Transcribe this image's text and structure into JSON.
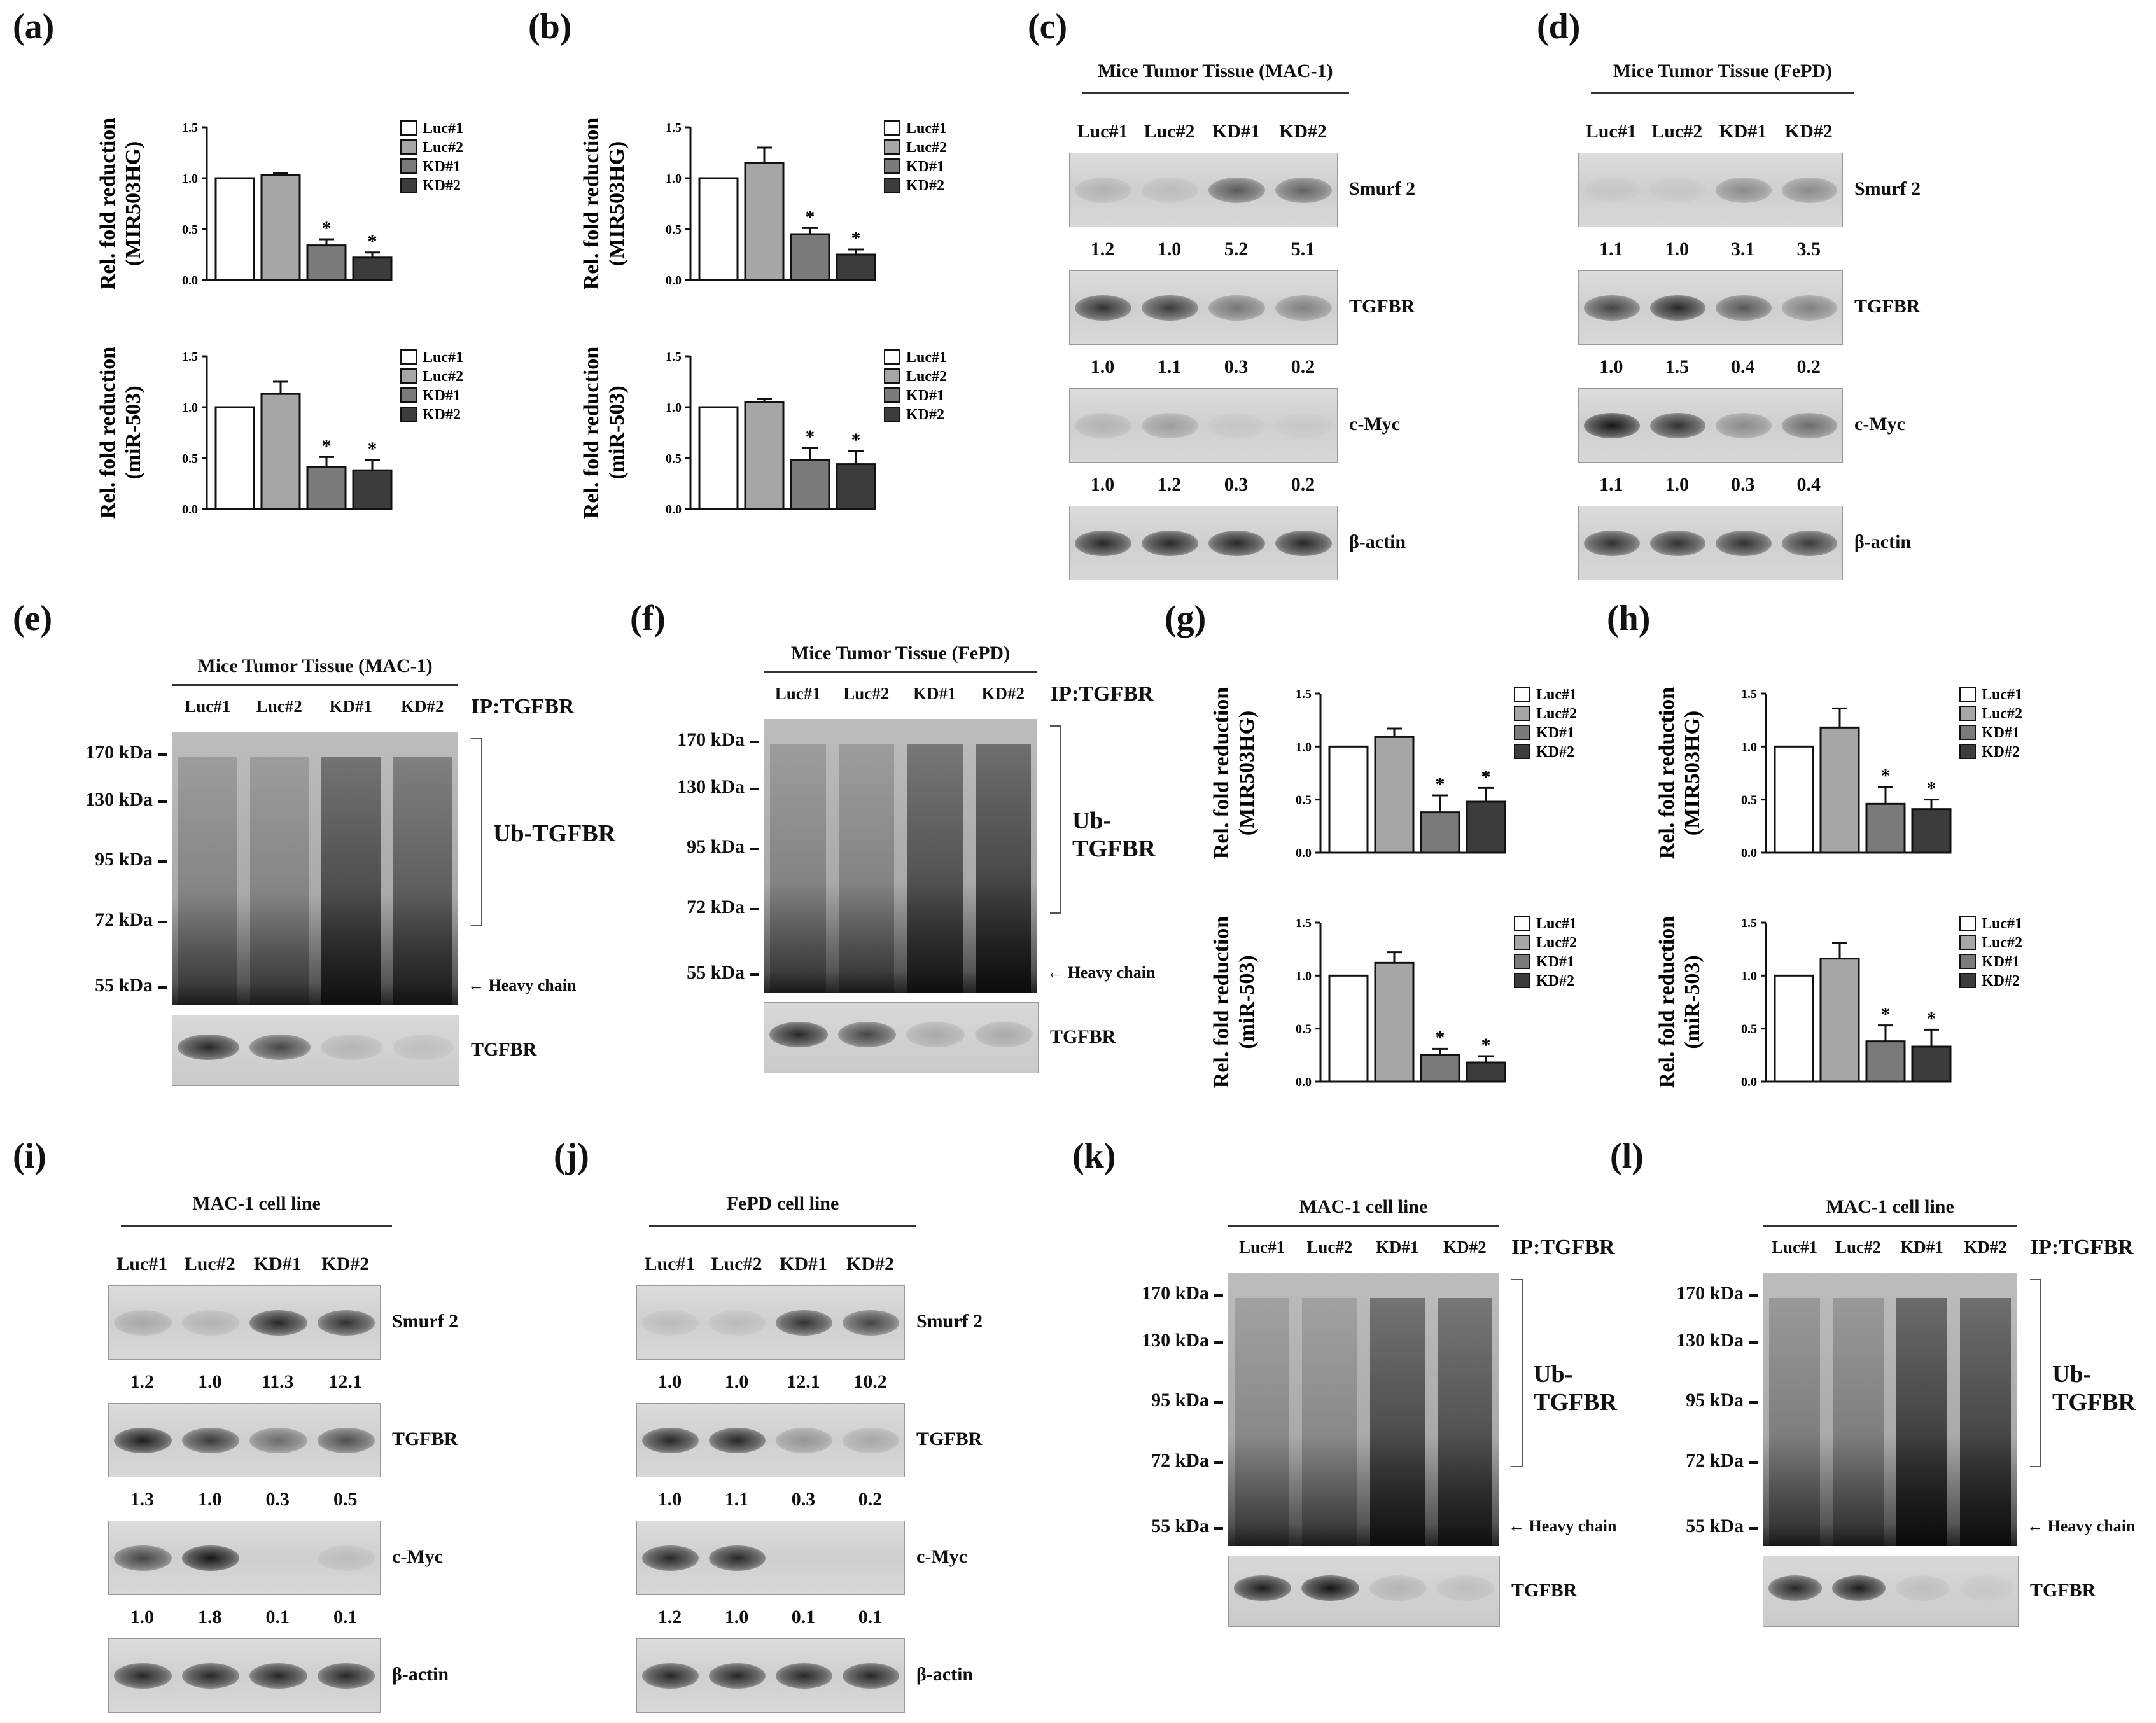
{
  "panel_labels": [
    "(a)",
    "(b)",
    "(c)",
    "(d)",
    "(e)",
    "(f)",
    "(g)",
    "(h)",
    "(i)",
    "(j)",
    "(k)",
    "(l)"
  ],
  "legend": [
    "Luc#1",
    "Luc#2",
    "KD#1",
    "KD#2"
  ],
  "bar_colors": [
    "#ffffff",
    "#a6a6a6",
    "#7a7a7a",
    "#3c3c3c"
  ],
  "chart_data": [
    {
      "panel": "(a)",
      "type": "bar",
      "ylabel": "Rel. fold reduction\n(MIR503HG)",
      "ylim": [
        0,
        1.5
      ],
      "yticks": [
        "0.0",
        "0.5",
        "1.0",
        "1.5"
      ],
      "categories": [
        "Luc#1",
        "Luc#2",
        "KD#1",
        "KD#2"
      ],
      "values": [
        1.0,
        1.03,
        0.34,
        0.22
      ],
      "errors": [
        0,
        0.02,
        0.06,
        0.05
      ],
      "significant": [
        false,
        false,
        true,
        true
      ],
      "star": "*"
    },
    {
      "panel": "(a)",
      "type": "bar",
      "ylabel": "Rel. fold reduction\n(miR-503)",
      "ylim": [
        0,
        1.5
      ],
      "yticks": [
        "0.0",
        "0.5",
        "1.0",
        "1.5"
      ],
      "categories": [
        "Luc#1",
        "Luc#2",
        "KD#1",
        "KD#2"
      ],
      "values": [
        1.0,
        1.13,
        0.41,
        0.38
      ],
      "errors": [
        0,
        0.12,
        0.1,
        0.1
      ],
      "significant": [
        false,
        false,
        true,
        true
      ],
      "star": "*"
    },
    {
      "panel": "(b)",
      "type": "bar",
      "ylabel": "Rel. fold reduction\n(MIR503HG)",
      "ylim": [
        0,
        1.5
      ],
      "yticks": [
        "0.0",
        "0.5",
        "1.0",
        "1.5"
      ],
      "categories": [
        "Luc#1",
        "Luc#2",
        "KD#1",
        "KD#2"
      ],
      "values": [
        1.0,
        1.15,
        0.45,
        0.25
      ],
      "errors": [
        0,
        0.15,
        0.06,
        0.05
      ],
      "significant": [
        false,
        false,
        true,
        true
      ],
      "star": "*"
    },
    {
      "panel": "(b)",
      "type": "bar",
      "ylabel": "Rel. fold reduction\n(miR-503)",
      "ylim": [
        0,
        1.5
      ],
      "yticks": [
        "0.0",
        "0.5",
        "1.0",
        "1.5"
      ],
      "categories": [
        "Luc#1",
        "Luc#2",
        "KD#1",
        "KD#2"
      ],
      "values": [
        1.0,
        1.05,
        0.48,
        0.44
      ],
      "errors": [
        0,
        0.03,
        0.12,
        0.13
      ],
      "significant": [
        false,
        false,
        true,
        true
      ],
      "star": "*"
    },
    {
      "panel": "(g)",
      "type": "bar",
      "ylabel": "Rel. fold reduction\n(MIR503HG)",
      "ylim": [
        0,
        1.5
      ],
      "yticks": [
        "0.0",
        "0.5",
        "1.0",
        "1.5"
      ],
      "categories": [
        "Luc#1",
        "Luc#2",
        "KD#1",
        "KD#2"
      ],
      "values": [
        1.0,
        1.09,
        0.38,
        0.48
      ],
      "errors": [
        0,
        0.08,
        0.16,
        0.13
      ],
      "significant": [
        false,
        false,
        true,
        true
      ],
      "star": "*"
    },
    {
      "panel": "(g)",
      "type": "bar",
      "ylabel": "Rel. fold reduction\n(miR-503)",
      "ylim": [
        0,
        1.5
      ],
      "yticks": [
        "0.0",
        "0.5",
        "1.0",
        "1.5"
      ],
      "categories": [
        "Luc#1",
        "Luc#2",
        "KD#1",
        "KD#2"
      ],
      "values": [
        1.0,
        1.12,
        0.25,
        0.18
      ],
      "errors": [
        0,
        0.1,
        0.06,
        0.06
      ],
      "significant": [
        false,
        false,
        true,
        true
      ],
      "star": "*"
    },
    {
      "panel": "(h)",
      "type": "bar",
      "ylabel": "Rel. fold reduction\n(MIR503HG)",
      "ylim": [
        0,
        1.5
      ],
      "yticks": [
        "0.0",
        "0.5",
        "1.0",
        "1.5"
      ],
      "categories": [
        "Luc#1",
        "Luc#2",
        "KD#1",
        "KD#2"
      ],
      "values": [
        1.0,
        1.18,
        0.46,
        0.41
      ],
      "errors": [
        0,
        0.18,
        0.16,
        0.09
      ],
      "significant": [
        false,
        false,
        true,
        true
      ],
      "star": "*"
    },
    {
      "panel": "(h)",
      "type": "bar",
      "ylabel": "Rel. fold reduction\n(miR-503)",
      "ylim": [
        0,
        1.5
      ],
      "yticks": [
        "0.0",
        "0.5",
        "1.0",
        "1.5"
      ],
      "categories": [
        "Luc#1",
        "Luc#2",
        "KD#1",
        "KD#2"
      ],
      "values": [
        1.0,
        1.16,
        0.38,
        0.33
      ],
      "errors": [
        0,
        0.15,
        0.15,
        0.16
      ],
      "significant": [
        false,
        false,
        true,
        true
      ],
      "star": "*"
    }
  ],
  "westerns": {
    "c": {
      "title": "Mice Tumor Tissue (MAC-1)",
      "lanes": [
        "Luc#1",
        "Luc#2",
        "KD#1",
        "KD#2"
      ],
      "proteins": [
        "Smurf 2",
        "TGFBR",
        "c-Myc",
        "β-actin"
      ],
      "quant": [
        [
          "1.2",
          "1.0",
          "5.2",
          "5.1"
        ],
        [
          "1.0",
          "1.1",
          "0.3",
          "0.2"
        ],
        [
          "1.0",
          "1.2",
          "0.3",
          "0.2"
        ]
      ],
      "intensity": [
        [
          0.15,
          0.1,
          0.6,
          0.55
        ],
        [
          0.8,
          0.75,
          0.45,
          0.4
        ],
        [
          0.15,
          0.25,
          0.05,
          0.04
        ],
        [
          0.85,
          0.85,
          0.85,
          0.85
        ]
      ]
    },
    "d": {
      "title": "Mice Tumor Tissue (FePD)",
      "lanes": [
        "Luc#1",
        "Luc#2",
        "KD#1",
        "KD#2"
      ],
      "proteins": [
        "Smurf 2",
        "TGFBR",
        "c-Myc",
        "β-actin"
      ],
      "quant": [
        [
          "1.1",
          "1.0",
          "3.1",
          "3.5"
        ],
        [
          "1.0",
          "1.5",
          "0.4",
          "0.2"
        ],
        [
          "1.1",
          "1.0",
          "0.3",
          "0.4"
        ]
      ],
      "intensity": [
        [
          0.05,
          0.05,
          0.35,
          0.35
        ],
        [
          0.7,
          0.85,
          0.6,
          0.4
        ],
        [
          0.95,
          0.8,
          0.35,
          0.5
        ],
        [
          0.8,
          0.8,
          0.8,
          0.75
        ]
      ]
    },
    "i": {
      "title": "MAC-1 cell line",
      "lanes": [
        "Luc#1",
        "Luc#2",
        "KD#1",
        "KD#2"
      ],
      "proteins": [
        "Smurf 2",
        "TGFBR",
        "c-Myc",
        "β-actin"
      ],
      "quant": [
        [
          "1.2",
          "1.0",
          "11.3",
          "12.1"
        ],
        [
          "1.3",
          "1.0",
          "0.3",
          "0.5"
        ],
        [
          "1.0",
          "1.8",
          "0.1",
          "0.1"
        ]
      ],
      "intensity": [
        [
          0.2,
          0.15,
          0.85,
          0.8
        ],
        [
          0.9,
          0.75,
          0.5,
          0.65
        ],
        [
          0.7,
          0.95,
          0.0,
          0.1
        ],
        [
          0.85,
          0.85,
          0.85,
          0.85
        ]
      ]
    },
    "j": {
      "title": "FePD cell line",
      "lanes": [
        "Luc#1",
        "Luc#2",
        "KD#1",
        "KD#2"
      ],
      "proteins": [
        "Smurf 2",
        "TGFBR",
        "c-Myc",
        "β-actin"
      ],
      "quant": [
        [
          "1.0",
          "1.0",
          "12.1",
          "10.2"
        ],
        [
          "1.0",
          "1.1",
          "0.3",
          "0.2"
        ],
        [
          "1.2",
          "1.0",
          "0.1",
          "0.1"
        ]
      ],
      "intensity": [
        [
          0.1,
          0.1,
          0.8,
          0.7
        ],
        [
          0.85,
          0.85,
          0.3,
          0.2
        ],
        [
          0.85,
          0.85,
          0.0,
          0.0
        ],
        [
          0.85,
          0.85,
          0.85,
          0.85
        ]
      ]
    }
  },
  "ips": {
    "e": {
      "title": "Mice Tumor Tissue (MAC-1)",
      "lanes": [
        "Luc#1",
        "Luc#2",
        "KD#1",
        "KD#2"
      ],
      "ip": "IP:TGFBR",
      "markers": [
        "170 kDa",
        "130 kDa",
        "95 kDa",
        "72 kDa",
        "55 kDa"
      ],
      "ub": "Ub-TGFBR",
      "heavy": "Heavy chain",
      "bottom": "TGFBR",
      "smear": [
        0.35,
        0.35,
        0.85,
        0.7
      ],
      "bottom_intensity": [
        0.85,
        0.7,
        0.15,
        0.1
      ]
    },
    "f": {
      "title": "Mice Tumor Tissue (FePD)",
      "lanes": [
        "Luc#1",
        "Luc#2",
        "KD#1",
        "KD#2"
      ],
      "ip": "IP:TGFBR",
      "markers": [
        "170 kDa",
        "130 kDa",
        "95 kDa",
        "72 kDa",
        "55 kDa"
      ],
      "ub": "Ub-TGFBR",
      "heavy": "Heavy chain",
      "bottom": "TGFBR",
      "smear": [
        0.35,
        0.35,
        0.8,
        0.9
      ],
      "bottom_intensity": [
        0.85,
        0.7,
        0.2,
        0.2
      ]
    },
    "k": {
      "title": "MAC-1 cell line",
      "lanes": [
        "Luc#1",
        "Luc#2",
        "KD#1",
        "KD#2"
      ],
      "ip": "IP:TGFBR",
      "markers": [
        "170 kDa",
        "130 kDa",
        "95 kDa",
        "72 kDa",
        "55 kDa"
      ],
      "ub": "Ub-TGFBR",
      "heavy": "Heavy chain",
      "bottom": "TGFBR",
      "smear": [
        0.3,
        0.3,
        0.85,
        0.8
      ],
      "bottom_intensity": [
        0.9,
        0.95,
        0.15,
        0.1
      ]
    },
    "l": {
      "title": "MAC-1 cell line",
      "lanes": [
        "Luc#1",
        "Luc#2",
        "KD#1",
        "KD#2"
      ],
      "ip": "IP:TGFBR",
      "markers": [
        "170 kDa",
        "130 kDa",
        "95 kDa",
        "72 kDa",
        "55 kDa"
      ],
      "ub": "Ub-TGFBR",
      "heavy": "Heavy chain",
      "bottom": "TGFBR",
      "smear": [
        0.4,
        0.4,
        0.95,
        0.9
      ],
      "bottom_intensity": [
        0.85,
        0.9,
        0.1,
        0.05
      ]
    }
  }
}
